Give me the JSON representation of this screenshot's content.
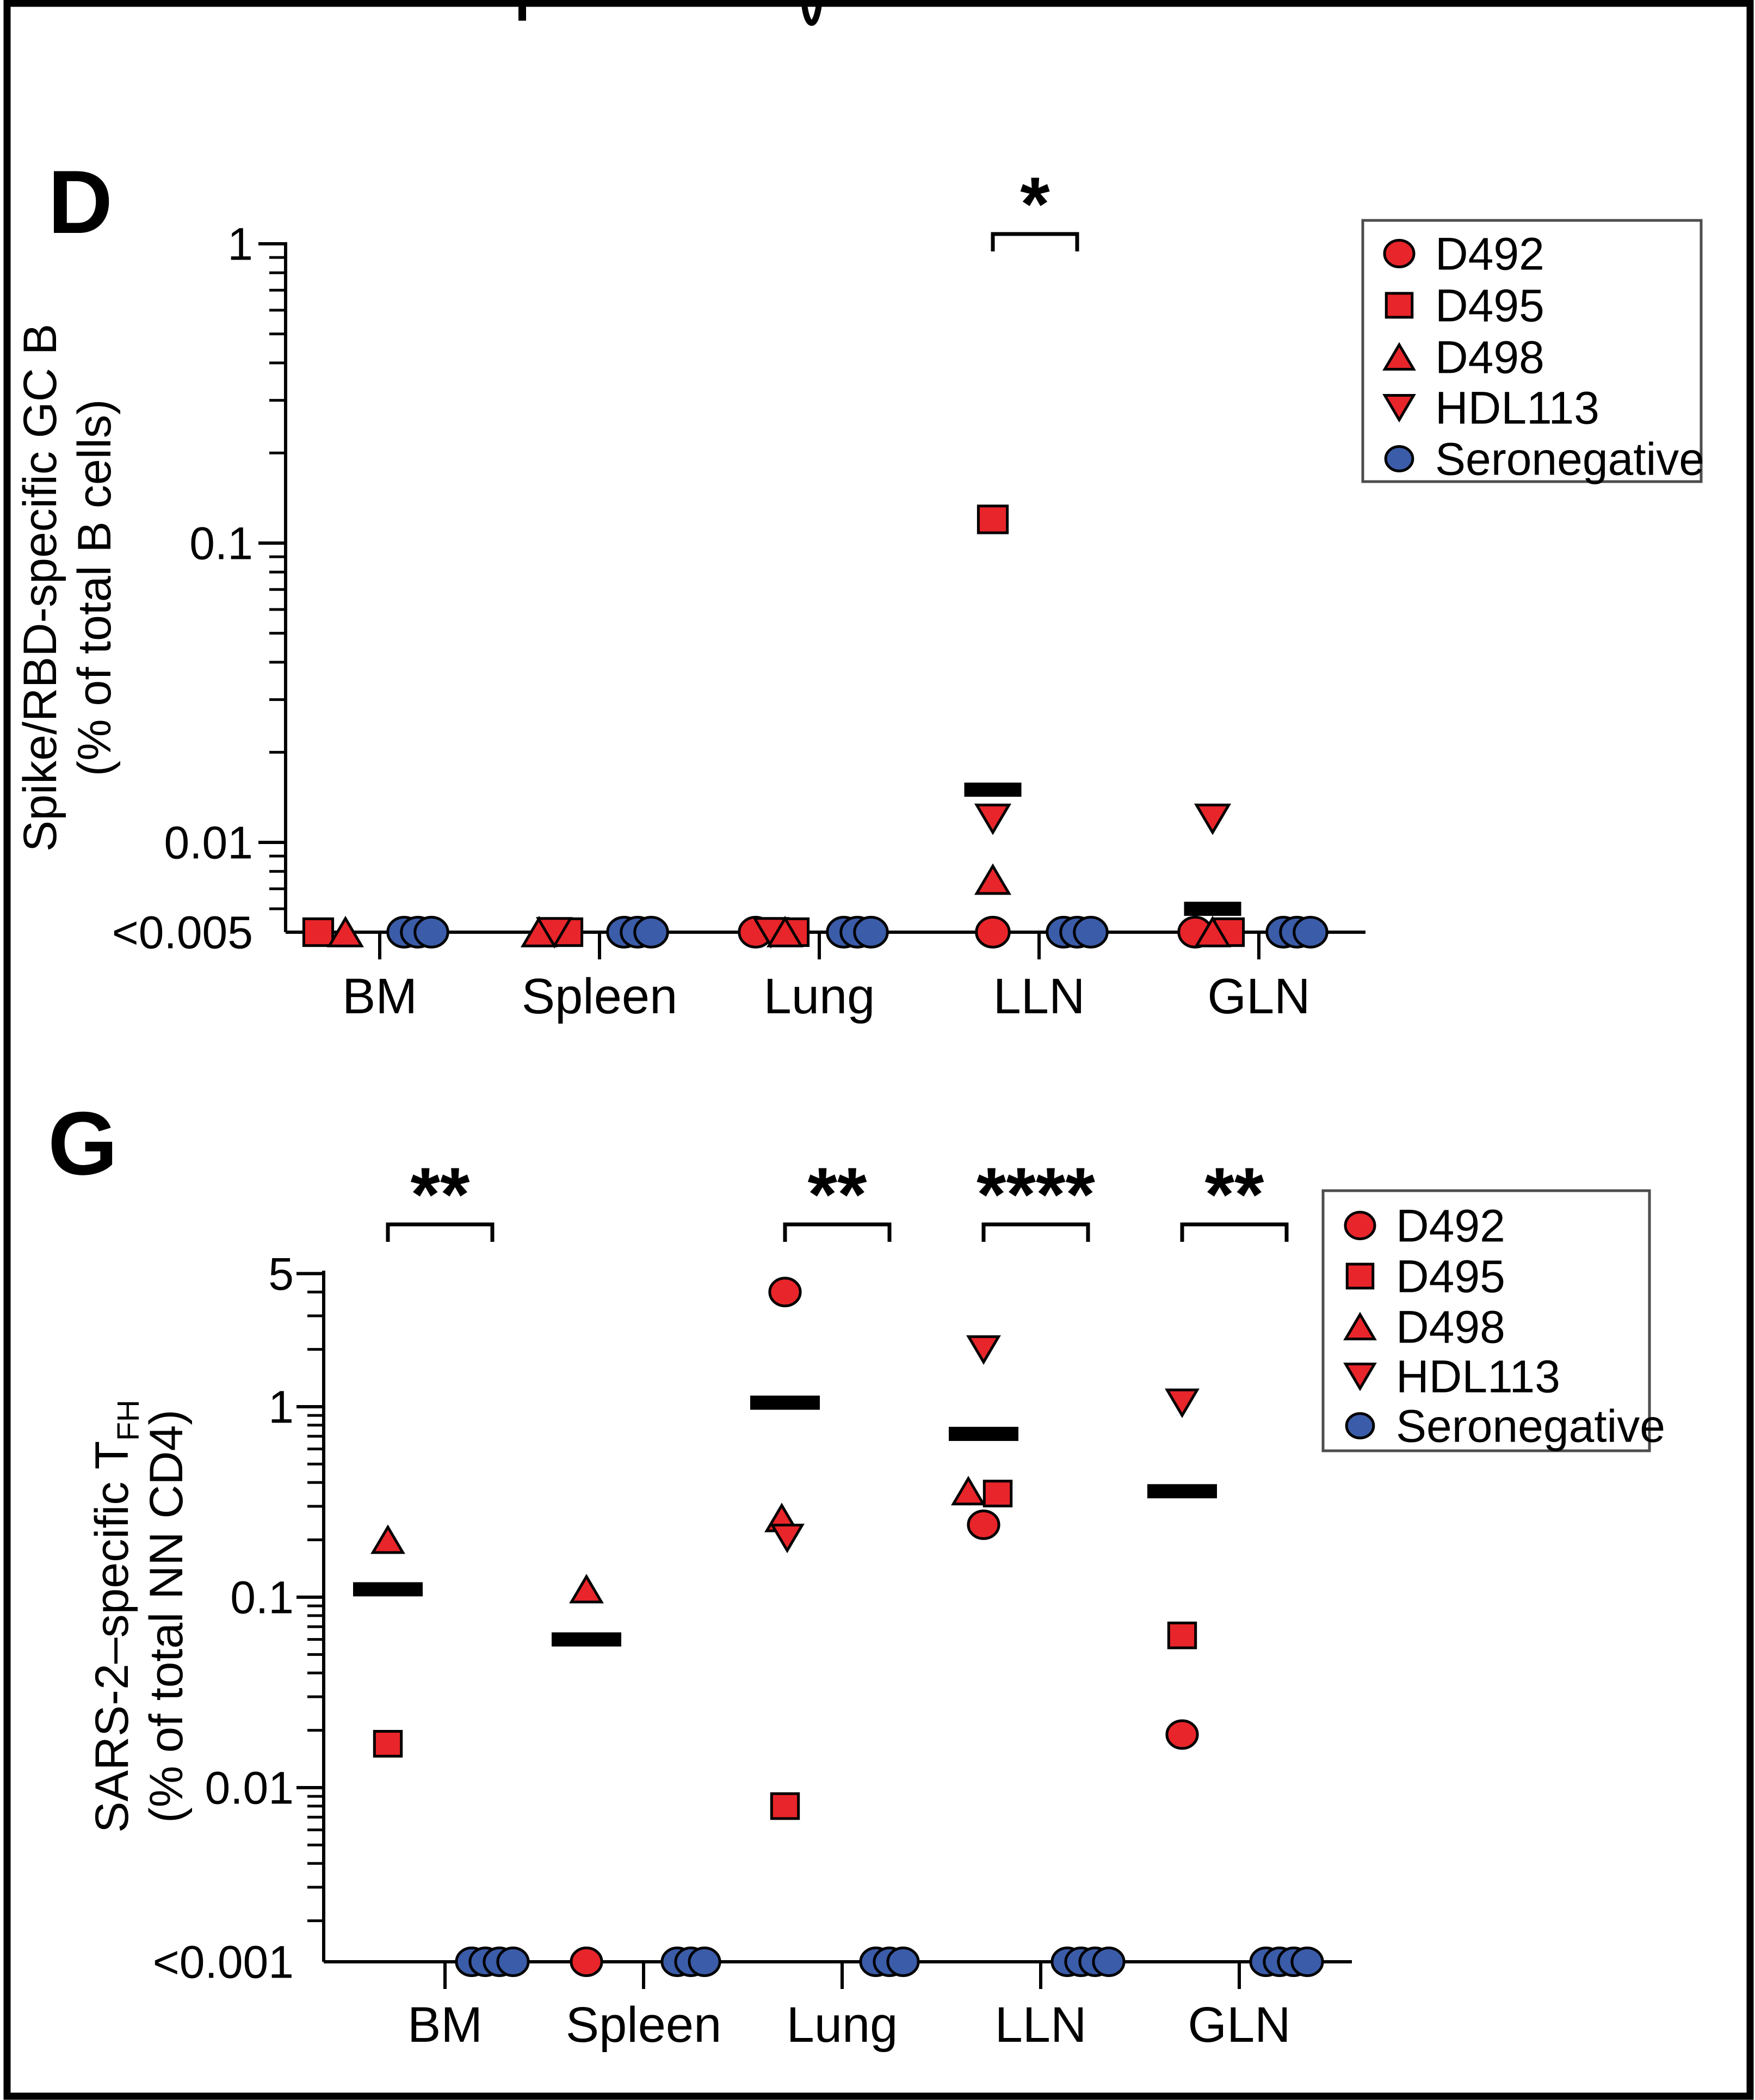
{
  "figure": {
    "background": "#ffffff",
    "frame_color": "#000000",
    "colors": {
      "infected_red": "#e8252a",
      "seronegative_blue": "#3b5ca8",
      "axis_black": "#000000",
      "mean_bar_black": "#000000",
      "legend_border_gray": "#4d4d4d"
    },
    "legend": {
      "items": [
        {
          "label": "D492",
          "marker": "circle",
          "color": "#e8252a"
        },
        {
          "label": "D495",
          "marker": "square",
          "color": "#e8252a"
        },
        {
          "label": "D498",
          "marker": "triangle-up",
          "color": "#e8252a"
        },
        {
          "label": "HDL113",
          "marker": "triangle-down",
          "color": "#e8252a"
        },
        {
          "label": "Seronegative",
          "marker": "circle",
          "color": "#3b5ca8"
        }
      ]
    }
  },
  "chart_data": [
    {
      "id": "panel-D",
      "panel_label": "D",
      "type": "scatter",
      "yscale": "log",
      "ylabel_lines": [
        "Spike/RBD-specific GC B",
        "(% of total B cells)"
      ],
      "ylabel_line1_subscript": "",
      "yticks": [
        {
          "label": "1",
          "value": 1
        },
        {
          "label": "0.1",
          "value": 0.1
        },
        {
          "label": "0.01",
          "value": 0.01
        }
      ],
      "baseline_label": "<0.005",
      "ylim": [
        0.005,
        1
      ],
      "categories": [
        "BM",
        "Spleen",
        "Lung",
        "LLN",
        "GLN"
      ],
      "points": [
        {
          "category": "BM",
          "donor": "D495",
          "value": "<0.005",
          "dx": -28
        },
        {
          "category": "BM",
          "donor": "D498",
          "value": "<0.005",
          "dx": 22
        },
        {
          "category": "BM",
          "donor": "Seronegative",
          "value": "<0.005",
          "dx": -25
        },
        {
          "category": "BM",
          "donor": "Seronegative",
          "value": "<0.005",
          "dx": 0
        },
        {
          "category": "BM",
          "donor": "Seronegative",
          "value": "<0.005",
          "dx": 25
        },
        {
          "category": "Spleen",
          "donor": "D495",
          "value": "<0.005",
          "dx": 26
        },
        {
          "category": "Spleen",
          "donor": "D498",
          "value": "<0.005",
          "dx": -26
        },
        {
          "category": "Spleen",
          "donor": "HDL113",
          "value": "<0.005",
          "dx": 2
        },
        {
          "category": "Spleen",
          "donor": "Seronegative",
          "value": "<0.005",
          "dx": -25
        },
        {
          "category": "Spleen",
          "donor": "Seronegative",
          "value": "<0.005",
          "dx": 0
        },
        {
          "category": "Spleen",
          "donor": "Seronegative",
          "value": "<0.005",
          "dx": 25
        },
        {
          "category": "Lung",
          "donor": "D495",
          "value": "<0.005",
          "dx": 38
        },
        {
          "category": "Lung",
          "donor": "D492",
          "value": "<0.005",
          "dx": -32
        },
        {
          "category": "Lung",
          "donor": "HDL113",
          "value": "<0.005",
          "dx": -4
        },
        {
          "category": "Lung",
          "donor": "D498",
          "value": "<0.005",
          "dx": 22
        },
        {
          "category": "Lung",
          "donor": "Seronegative",
          "value": "<0.005",
          "dx": -25
        },
        {
          "category": "Lung",
          "donor": "Seronegative",
          "value": "<0.005",
          "dx": 0
        },
        {
          "category": "Lung",
          "donor": "Seronegative",
          "value": "<0.005",
          "dx": 25
        },
        {
          "category": "LLN",
          "donor": "D495",
          "value": 0.12,
          "dx": 0
        },
        {
          "category": "LLN",
          "donor": "HDL113",
          "value": 0.012,
          "dx": 0
        },
        {
          "category": "LLN",
          "donor": "D498",
          "value": 0.0075,
          "dx": 0
        },
        {
          "category": "LLN",
          "donor": "D492",
          "value": "<0.005",
          "dx": 0
        },
        {
          "category": "LLN",
          "donor": "Seronegative",
          "value": "<0.005",
          "dx": -25
        },
        {
          "category": "LLN",
          "donor": "Seronegative",
          "value": "<0.005",
          "dx": 0
        },
        {
          "category": "LLN",
          "donor": "Seronegative",
          "value": "<0.005",
          "dx": 25
        },
        {
          "category": "GLN",
          "donor": "HDL113",
          "value": 0.012,
          "dx": 0
        },
        {
          "category": "GLN",
          "donor": "D495",
          "value": "<0.005",
          "dx": 30
        },
        {
          "category": "GLN",
          "donor": "D492",
          "value": "<0.005",
          "dx": -32
        },
        {
          "category": "GLN",
          "donor": "D498",
          "value": "<0.005",
          "dx": 0
        },
        {
          "category": "GLN",
          "donor": "Seronegative",
          "value": "<0.005",
          "dx": -25
        },
        {
          "category": "GLN",
          "donor": "Seronegative",
          "value": "<0.005",
          "dx": 0
        },
        {
          "category": "GLN",
          "donor": "Seronegative",
          "value": "<0.005",
          "dx": 25
        }
      ],
      "means": [
        {
          "category": "LLN",
          "value": 0.015
        },
        {
          "category": "GLN",
          "value": 0.006
        }
      ],
      "significance": [
        {
          "category": "LLN",
          "label": "*"
        }
      ]
    },
    {
      "id": "panel-G",
      "panel_label": "G",
      "type": "scatter",
      "yscale": "log",
      "ylabel_lines": [
        "SARS-2–specific T",
        "(% of total NN CD4)"
      ],
      "ylabel_line1_subscript": "FH",
      "yticks": [
        {
          "label": "5",
          "value": 5
        },
        {
          "label": "1",
          "value": 1
        },
        {
          "label": "0.1",
          "value": 0.1
        },
        {
          "label": "0.01",
          "value": 0.01
        }
      ],
      "baseline_label": "<0.001",
      "ylim": [
        0.001,
        5
      ],
      "categories": [
        "BM",
        "Spleen",
        "Lung",
        "LLN",
        "GLN"
      ],
      "points": [
        {
          "category": "BM",
          "donor": "D498",
          "value": 0.2,
          "dx": 0
        },
        {
          "category": "BM",
          "donor": "D495",
          "value": 0.017,
          "dx": 0
        },
        {
          "category": "BM",
          "donor": "Seronegative",
          "value": "<0.001",
          "dx": -38
        },
        {
          "category": "BM",
          "donor": "Seronegative",
          "value": "<0.001",
          "dx": -13
        },
        {
          "category": "BM",
          "donor": "Seronegative",
          "value": "<0.001",
          "dx": 13
        },
        {
          "category": "BM",
          "donor": "Seronegative",
          "value": "<0.001",
          "dx": 38
        },
        {
          "category": "Spleen",
          "donor": "D498",
          "value": 0.11,
          "dx": 0
        },
        {
          "category": "Spleen",
          "donor": "D492",
          "value": "<0.001",
          "dx": 0
        },
        {
          "category": "Spleen",
          "donor": "Seronegative",
          "value": "<0.001",
          "dx": -25
        },
        {
          "category": "Spleen",
          "donor": "Seronegative",
          "value": "<0.001",
          "dx": 0
        },
        {
          "category": "Spleen",
          "donor": "Seronegative",
          "value": "<0.001",
          "dx": 25
        },
        {
          "category": "Lung",
          "donor": "D492",
          "value": 4.0,
          "dx": 0
        },
        {
          "category": "Lung",
          "donor": "D498",
          "value": 0.26,
          "dx": -6
        },
        {
          "category": "Lung",
          "donor": "HDL113",
          "value": 0.205,
          "dx": 4
        },
        {
          "category": "Lung",
          "donor": "D495",
          "value": 0.008,
          "dx": 0
        },
        {
          "category": "Lung",
          "donor": "Seronegative",
          "value": "<0.001",
          "dx": -25
        },
        {
          "category": "Lung",
          "donor": "Seronegative",
          "value": "<0.001",
          "dx": 0
        },
        {
          "category": "Lung",
          "donor": "Seronegative",
          "value": "<0.001",
          "dx": 25
        },
        {
          "category": "LLN",
          "donor": "HDL113",
          "value": 2.0,
          "dx": 0
        },
        {
          "category": "LLN",
          "donor": "D498",
          "value": 0.36,
          "dx": -28
        },
        {
          "category": "LLN",
          "donor": "D495",
          "value": 0.35,
          "dx": 26
        },
        {
          "category": "LLN",
          "donor": "D492",
          "value": 0.24,
          "dx": 0
        },
        {
          "category": "LLN",
          "donor": "Seronegative",
          "value": "<0.001",
          "dx": -38
        },
        {
          "category": "LLN",
          "donor": "Seronegative",
          "value": "<0.001",
          "dx": -13
        },
        {
          "category": "LLN",
          "donor": "Seronegative",
          "value": "<0.001",
          "dx": 13
        },
        {
          "category": "LLN",
          "donor": "Seronegative",
          "value": "<0.001",
          "dx": 38
        },
        {
          "category": "GLN",
          "donor": "HDL113",
          "value": 1.05,
          "dx": 0
        },
        {
          "category": "GLN",
          "donor": "D495",
          "value": 0.063,
          "dx": 0
        },
        {
          "category": "GLN",
          "donor": "D492",
          "value": 0.019,
          "dx": 0
        },
        {
          "category": "GLN",
          "donor": "Seronegative",
          "value": "<0.001",
          "dx": -38
        },
        {
          "category": "GLN",
          "donor": "Seronegative",
          "value": "<0.001",
          "dx": -13
        },
        {
          "category": "GLN",
          "donor": "Seronegative",
          "value": "<0.001",
          "dx": 13
        },
        {
          "category": "GLN",
          "donor": "Seronegative",
          "value": "<0.001",
          "dx": 38
        }
      ],
      "means": [
        {
          "category": "BM",
          "value": 0.11
        },
        {
          "category": "Spleen",
          "value": 0.06
        },
        {
          "category": "Lung",
          "value": 1.05
        },
        {
          "category": "LLN",
          "value": 0.72
        },
        {
          "category": "GLN",
          "value": 0.36
        }
      ],
      "significance": [
        {
          "category": "BM",
          "label": "**"
        },
        {
          "category": "Lung",
          "label": "**"
        },
        {
          "category": "LLN",
          "label": "****"
        },
        {
          "category": "GLN",
          "label": "**"
        }
      ]
    }
  ]
}
